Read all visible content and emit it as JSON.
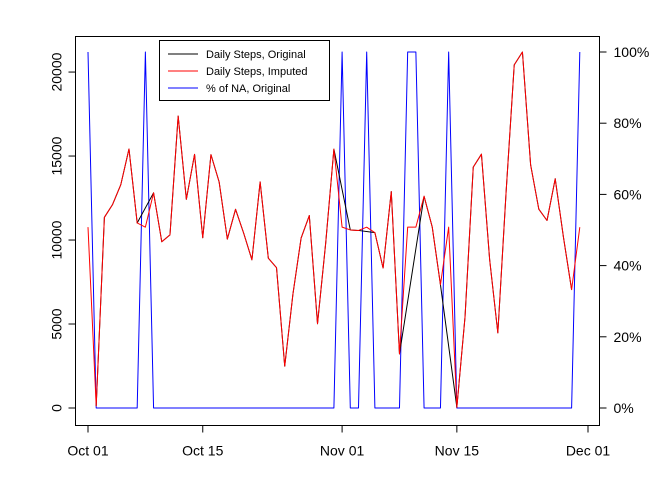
{
  "chart_data": {
    "type": "line",
    "x_type": "date",
    "x": [
      "2012-10-01",
      "2012-10-02",
      "2012-10-03",
      "2012-10-04",
      "2012-10-05",
      "2012-10-06",
      "2012-10-07",
      "2012-10-08",
      "2012-10-09",
      "2012-10-10",
      "2012-10-11",
      "2012-10-12",
      "2012-10-13",
      "2012-10-14",
      "2012-10-15",
      "2012-10-16",
      "2012-10-17",
      "2012-10-18",
      "2012-10-19",
      "2012-10-20",
      "2012-10-21",
      "2012-10-22",
      "2012-10-23",
      "2012-10-24",
      "2012-10-25",
      "2012-10-26",
      "2012-10-27",
      "2012-10-28",
      "2012-10-29",
      "2012-10-30",
      "2012-10-31",
      "2012-11-01",
      "2012-11-02",
      "2012-11-03",
      "2012-11-04",
      "2012-11-05",
      "2012-11-06",
      "2012-11-07",
      "2012-11-08",
      "2012-11-09",
      "2012-11-10",
      "2012-11-11",
      "2012-11-12",
      "2012-11-13",
      "2012-11-14",
      "2012-11-15",
      "2012-11-16",
      "2012-11-17",
      "2012-11-18",
      "2012-11-19",
      "2012-11-20",
      "2012-11-21",
      "2012-11-22",
      "2012-11-23",
      "2012-11-24",
      "2012-11-25",
      "2012-11-26",
      "2012-11-27",
      "2012-11-28",
      "2012-11-29",
      "2012-11-30"
    ],
    "x_tick_labels": [
      "Oct 01",
      "Oct 15",
      "Nov 01",
      "Nov 15",
      "Dec 01"
    ],
    "x_tick_dates": [
      "2012-10-01",
      "2012-10-15",
      "2012-11-01",
      "2012-11-15",
      "2012-12-01"
    ],
    "y_left": {
      "ylim": [
        0,
        21194
      ],
      "ticks": [
        0,
        5000,
        10000,
        15000,
        20000
      ],
      "tick_labels": [
        "0",
        "5000",
        "10000",
        "15000",
        "20000"
      ]
    },
    "y_right": {
      "ylim": [
        0,
        100
      ],
      "ticks": [
        0,
        20,
        40,
        60,
        80,
        100
      ],
      "tick_labels": [
        "0%",
        "20%",
        "40%",
        "60%",
        "80%",
        "100%"
      ]
    },
    "series": [
      {
        "name": "Daily Steps, Original",
        "color": "#000000",
        "axis": "left",
        "values": [
          null,
          126,
          11352,
          12116,
          13294,
          15420,
          11015,
          null,
          12811,
          9900,
          10304,
          17382,
          12426,
          15098,
          10139,
          15084,
          13452,
          10056,
          11829,
          10395,
          8821,
          13460,
          8918,
          8355,
          2492,
          6778,
          10119,
          11458,
          5018,
          9819,
          15414,
          null,
          10600,
          10571,
          null,
          10439,
          8334,
          12883,
          3219,
          null,
          null,
          12608,
          10765,
          7336,
          null,
          41,
          5441,
          14339,
          15110,
          8841,
          4472,
          12787,
          20427,
          21194,
          14478,
          11834,
          11162,
          13646,
          10183,
          7047,
          null
        ]
      },
      {
        "name": "Daily Steps, Imputed",
        "color": "#ff0000",
        "axis": "left",
        "values": [
          10766,
          126,
          11352,
          12116,
          13294,
          15420,
          11015,
          10766,
          12811,
          9900,
          10304,
          17382,
          12426,
          15098,
          10139,
          15084,
          13452,
          10056,
          11829,
          10395,
          8821,
          13460,
          8918,
          8355,
          2492,
          6778,
          10119,
          11458,
          5018,
          9819,
          15414,
          10766,
          10600,
          10571,
          10766,
          10439,
          8334,
          12883,
          3219,
          10766,
          10766,
          12608,
          10765,
          7336,
          10766,
          41,
          5441,
          14339,
          15110,
          8841,
          4472,
          12787,
          20427,
          21194,
          14478,
          11834,
          11162,
          13646,
          10183,
          7047,
          10766
        ]
      },
      {
        "name": "% of NA, Original",
        "color": "#0000ff",
        "axis": "right",
        "values": [
          100,
          0,
          0,
          0,
          0,
          0,
          0,
          100,
          0,
          0,
          0,
          0,
          0,
          0,
          0,
          0,
          0,
          0,
          0,
          0,
          0,
          0,
          0,
          0,
          0,
          0,
          0,
          0,
          0,
          0,
          0,
          100,
          0,
          0,
          100,
          0,
          0,
          0,
          0,
          100,
          100,
          0,
          0,
          0,
          100,
          0,
          0,
          0,
          0,
          0,
          0,
          0,
          0,
          0,
          0,
          0,
          0,
          0,
          0,
          0,
          100
        ]
      }
    ],
    "legend": {
      "placement": "top",
      "entries": [
        "Daily Steps, Original",
        "Daily Steps, Imputed",
        "% of NA, Original"
      ]
    },
    "grid": false,
    "title": "",
    "xlabel": "",
    "ylabel": ""
  }
}
